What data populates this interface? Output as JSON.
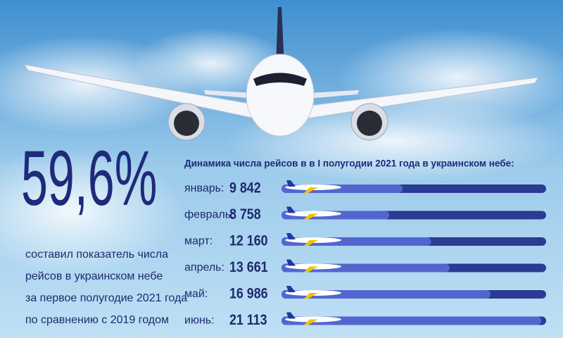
{
  "chart_data": {
    "type": "bar",
    "headline": "59,6%",
    "description": [
      "составил показатель числа",
      "рейсов в украинском небе",
      "за первое полугодие 2021 года",
      "по сравнению с 2019 годом"
    ],
    "title": "Динамика числа рейсов в в I полугодии 2021 года в украинском небе:",
    "categories": [
      "январь:",
      "февраль:",
      "март:",
      "апрель:",
      "май:",
      "июнь:"
    ],
    "values": [
      9842,
      8758,
      12160,
      13661,
      16986,
      21113
    ],
    "value_labels": [
      "9 842",
      "8 758",
      "12 160",
      "13 661",
      "16 986",
      "21 113"
    ],
    "color": "#5366cf",
    "track_color": "#2b3a92",
    "xlim": [
      0,
      21500
    ]
  }
}
